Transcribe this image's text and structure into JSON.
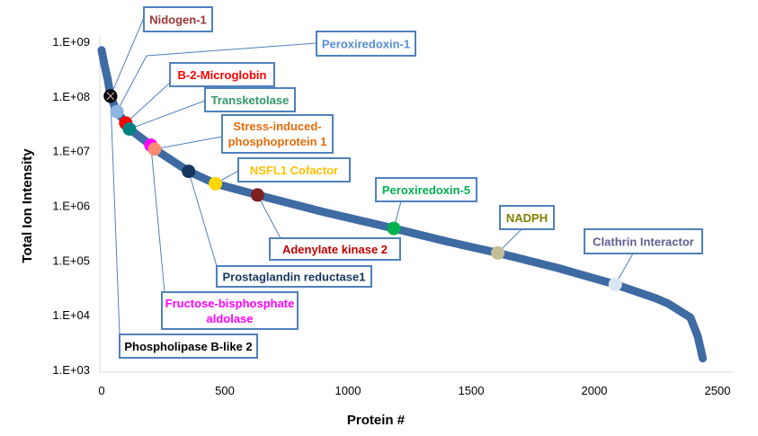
{
  "chart_data": {
    "type": "scatter",
    "title": "",
    "xlabel": "Protein #",
    "ylabel": "Total Ion Intensity",
    "xlim": [
      0,
      2500
    ],
    "ylim": [
      1000,
      1000000000
    ],
    "y_scale": "log",
    "grid": false,
    "x_ticks": [
      "0",
      "500",
      "1000",
      "1500",
      "2000",
      "2500"
    ],
    "y_ticks": [
      "1.E+03",
      "1.E+04",
      "1.E+05",
      "1.E+06",
      "1.E+07",
      "1.E+08",
      "1.E+09"
    ],
    "series": [
      {
        "color": "#3f6ba3",
        "marker": "diamond",
        "points": [
          [
            0,
            690000000.0
          ],
          [
            10,
            400000000.0
          ],
          [
            25,
            200000000.0
          ],
          [
            36,
            100000000.0
          ],
          [
            62,
            52000000.0
          ],
          [
            98,
            32000000.0
          ],
          [
            113,
            25000000.0
          ],
          [
            200,
            12600000.0
          ],
          [
            215,
            10700000.0
          ],
          [
            353,
            4200000.0
          ],
          [
            462,
            2500000.0
          ],
          [
            633,
            1550000.0
          ],
          [
            900,
            760000.0
          ],
          [
            1186,
            380000.0
          ],
          [
            1400,
            220000.0
          ],
          [
            1608,
            135000.0
          ],
          [
            1850,
            72000.0
          ],
          [
            2085,
            36000.0
          ],
          [
            2250,
            20000.0
          ],
          [
            2300,
            16000.0
          ],
          [
            2390,
            8900.0
          ],
          [
            2420,
            4000.0
          ],
          [
            2440,
            1600.0
          ]
        ]
      }
    ],
    "annotations": [
      {
        "text": "Nidogen-1",
        "x": 36,
        "y": 100000000.0,
        "text_color": "#953735",
        "marker_color": "#000000"
      },
      {
        "text": "Peroxiredoxin-1",
        "x": 62,
        "y": 52000000.0,
        "text_color": "#558ed5",
        "marker_color": "#8eb4e3"
      },
      {
        "text": "B-2-Microglobin",
        "x": 98,
        "y": 32000000.0,
        "text_color": "#ff0000",
        "marker_color": "#ff0000"
      },
      {
        "text": "Transketolase",
        "x": 113,
        "y": 25000000.0,
        "text_color": "#339966",
        "marker_color": "#00807f"
      },
      {
        "text": "Stress-induced-phosphoprotein 1",
        "x": 215,
        "y": 10700000.0,
        "text_color": "#e46c0a",
        "marker_color": "#fa8a70"
      },
      {
        "text": "NSFL1 Cofactor",
        "x": 462,
        "y": 2500000.0,
        "text_color": "#ffc000",
        "marker_color": "#ffd700"
      },
      {
        "text": "Peroxiredoxin-5",
        "x": 1186,
        "y": 380000.0,
        "text_color": "#00b050",
        "marker_color": "#00b050"
      },
      {
        "text": "Adenylate kinase 2",
        "x": 633,
        "y": 1550000.0,
        "text_color": "#c00000",
        "marker_color": "#7f2020"
      },
      {
        "text": "Prostaglandin reductase1",
        "x": 353,
        "y": 4200000.0,
        "text_color": "#17375e",
        "marker_color": "#17375e"
      },
      {
        "text": "Fructose-bisphosphate aldolase",
        "x": 200,
        "y": 12600000.0,
        "text_color": "#ff00ff",
        "marker_color": "#ff00ff"
      },
      {
        "text": "Phospholipase B-like 2",
        "x": 36,
        "y": 100000000.0,
        "text_color": "#000000",
        "marker_color": "#000000"
      },
      {
        "text": "NADPH",
        "x": 1608,
        "y": 135000.0,
        "text_color": "#808000",
        "marker_color": "#c4bd97"
      },
      {
        "text": "Clathrin Interactor",
        "x": 2085,
        "y": 36000.0,
        "text_color": "#5f5f8f",
        "marker_color": "#dce6f2"
      }
    ]
  }
}
